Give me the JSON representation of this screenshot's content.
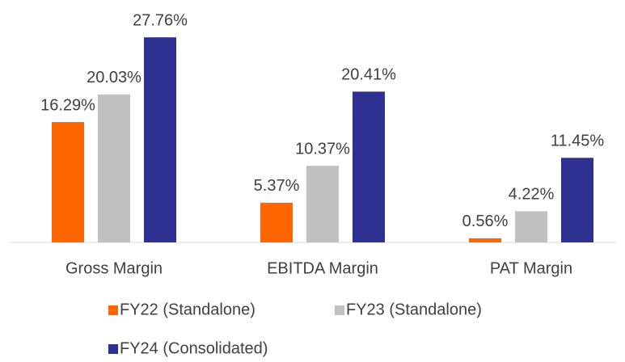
{
  "chart_data": {
    "type": "bar",
    "categories": [
      "Gross Margin",
      "EBITDA Margin",
      "PAT Margin"
    ],
    "series": [
      {
        "name": "FY22 (Standalone)",
        "color": "#ff6600",
        "values": [
          16.29,
          5.37,
          0.56
        ],
        "value_labels": [
          "16.29%",
          "5.37%",
          "0.56%"
        ]
      },
      {
        "name": "FY23 (Standalone)",
        "color": "#c0c0c0",
        "values": [
          20.03,
          10.37,
          4.22
        ],
        "value_labels": [
          "20.03%",
          "10.37%",
          "4.22%"
        ]
      },
      {
        "name": "FY24 (Consolidated)",
        "color": "#2e3192",
        "values": [
          27.76,
          20.41,
          11.45
        ],
        "value_labels": [
          "27.76%",
          "20.41%",
          "11.45%"
        ]
      }
    ],
    "ylim": [
      0,
      28
    ]
  }
}
